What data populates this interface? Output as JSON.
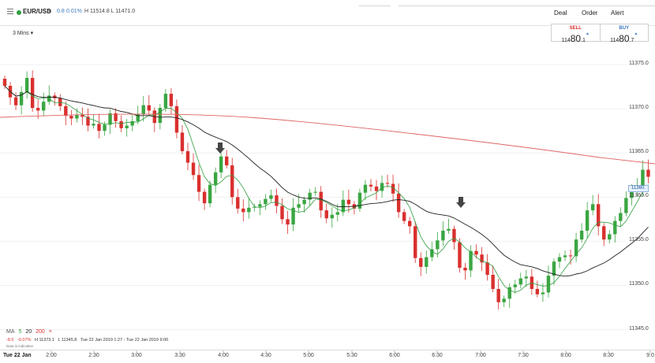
{
  "header": {
    "menu_icon": "hamburger-icon",
    "status_color": "#2e9e3e",
    "symbol": "EUR/USD",
    "change": "0.8",
    "change_pct": "0.01%",
    "high_low": "H 11514.8  L 11471.0",
    "nav": [
      {
        "label": "Deal"
      },
      {
        "label": "Order"
      },
      {
        "label": "Alert"
      }
    ]
  },
  "interval": "3 Mins",
  "ticket": {
    "sell": {
      "label": "SELL",
      "pre": "114",
      "big": "80",
      "small": ".1"
    },
    "buy": {
      "label": "BUY",
      "pre": "114",
      "big": "80",
      "small": ".7"
    }
  },
  "ma_legend": {
    "label": "MA",
    "periods": [
      {
        "value": "5",
        "color": "#2e9e3e"
      },
      {
        "value": "20",
        "color": "#222222"
      },
      {
        "value": "200",
        "color": "#d9302e"
      }
    ],
    "close_label": "×"
  },
  "stats": {
    "change": "-8.5",
    "change_pct": "-0.07%",
    "high": "H 11373.1",
    "low": "L 11345.8",
    "range": "Tue 22 Jan 2019 1:27 - Tue 22 Jan 2019 9:00"
  },
  "disclaimer": "Data is indicative",
  "axis_marker": "11360.",
  "chart_data": {
    "type": "candlestick",
    "y_range": [
      11343,
      11380
    ],
    "y_ticks": [
      "11375.0",
      "11370.0",
      "11365.0",
      "11360.0",
      "11355.0",
      "11350.0",
      "11345.0"
    ],
    "x_first_label": "Tue 22 Jan",
    "x_ticks": [
      "2:00",
      "2:30",
      "3:00",
      "3:30",
      "4:00",
      "4:30",
      "5:00",
      "5:30",
      "6:00",
      "6:30",
      "7:00",
      "7:30",
      "8:00",
      "8:30",
      "9:0"
    ],
    "up_color": "#3aa642",
    "down_color": "#d9302e",
    "closes": [
      11372.6,
      11371.3,
      11370.4,
      11371.9,
      11373.5,
      11370.1,
      11369.8,
      11370.8,
      11371.5,
      11371.2,
      11370.3,
      11369.2,
      11368.9,
      11369.3,
      11369.1,
      11368.1,
      11368.3,
      11367.5,
      11368.2,
      11369.5,
      11368.6,
      11367.8,
      11368.1,
      11368.6,
      11369.4,
      11370.4,
      11369.8,
      11368.4,
      11370.1,
      11371.7,
      11370.3,
      11367.3,
      11365.2,
      11363.9,
      11362.5,
      11360.6,
      11359.3,
      11361.4,
      11362.8,
      11364.6,
      11363.6,
      11360.0,
      11358.7,
      11358.3,
      11358.8,
      11358.9,
      11359.2,
      11359.8,
      11360.2,
      11359.0,
      11357.5,
      11356.9,
      11358.8,
      11359.2,
      11359.7,
      11360.5,
      11360.6,
      11358.5,
      11357.6,
      11358.0,
      11358.3,
      11359.7,
      11359.2,
      11358.7,
      11360.5,
      11361.4,
      11361.2,
      11360.7,
      11361.6,
      11361.5,
      11360.4,
      11358.3,
      11357.3,
      11356.7,
      11353.1,
      11352.1,
      11353.2,
      11354.1,
      11355.1,
      11356.2,
      11356.4,
      11354.9,
      11352.0,
      11351.7,
      11353.9,
      11353.5,
      11352.6,
      11351.2,
      11349.6,
      11348.1,
      11348.5,
      11349.8,
      11350.1,
      11350.8,
      11351.0,
      11349.6,
      11349.0,
      11349.2,
      11351.1,
      11352.7,
      11353.2,
      11353.4,
      11353.3,
      11355.2,
      11356.2,
      11358.5,
      11359.2,
      11356.7,
      11355.2,
      11355.8,
      11357.3,
      11358.2,
      11359.9,
      11360.6,
      11361.2,
      11363.1,
      11362.3
    ]
  }
}
